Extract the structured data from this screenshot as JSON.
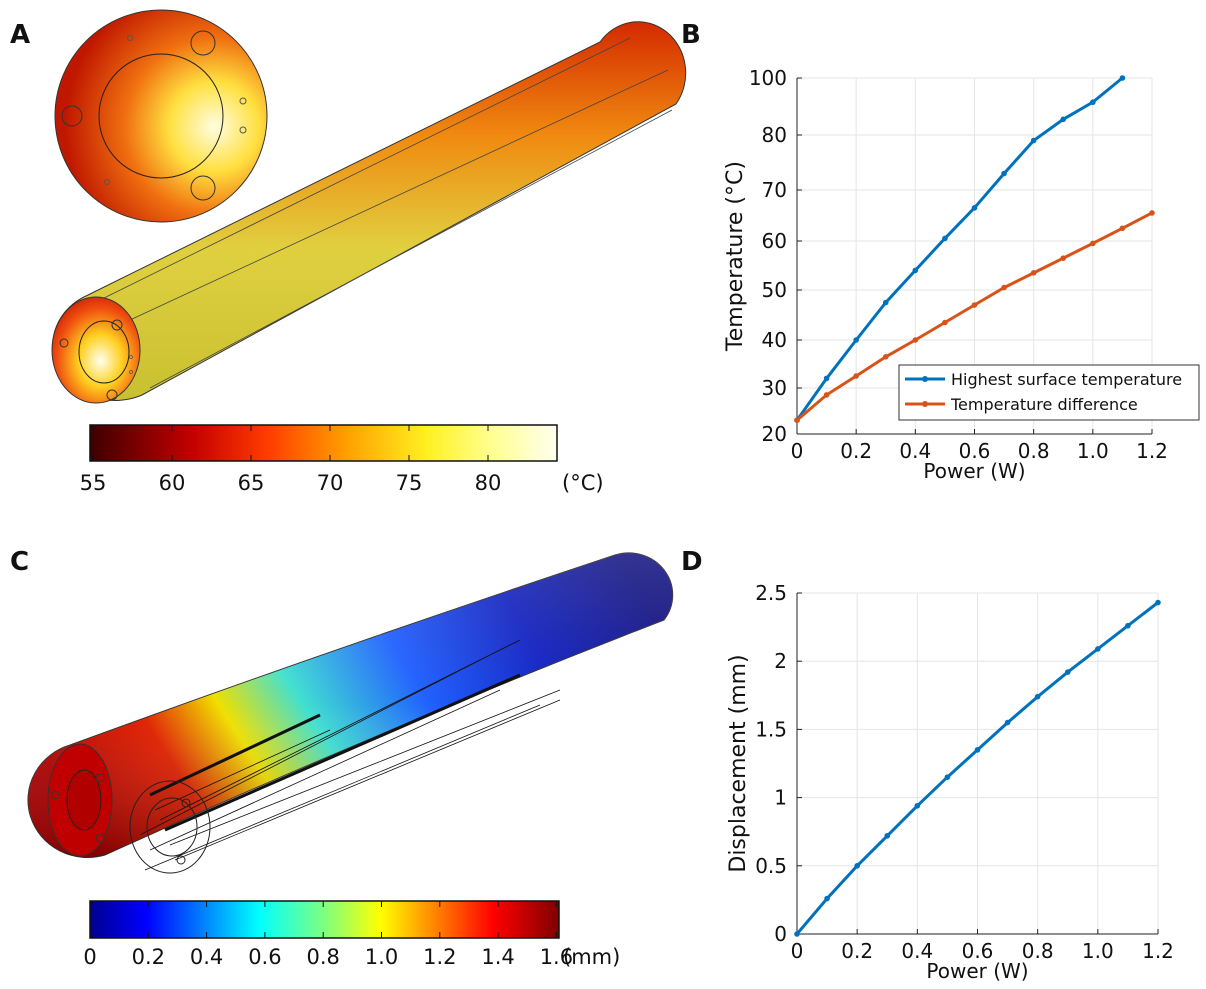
{
  "panels": {
    "a": {
      "letter": "A"
    },
    "b": {
      "letter": "B"
    },
    "c": {
      "letter": "C"
    },
    "d": {
      "letter": "D"
    }
  },
  "colors": {
    "blue": "#0072BD",
    "orange": "#D95319",
    "grid": "#e6e6e6"
  },
  "colorbar_a": {
    "ticks": [
      "55",
      "60",
      "65",
      "70",
      "75",
      "80"
    ],
    "unit": "(°C)",
    "colormap": "hot"
  },
  "colorbar_c": {
    "ticks": [
      "0",
      "0.2",
      "0.4",
      "0.6",
      "0.8",
      "1.0",
      "1.2",
      "1.4",
      "1.6"
    ],
    "unit": "(mm)",
    "colormap": "jet"
  },
  "chart_data": [
    {
      "panel": "B",
      "type": "line",
      "xlabel": "Power (W)",
      "ylabel": "Temperature (°C)",
      "xlim": [
        0,
        1.2
      ],
      "ylim": [
        20,
        100
      ],
      "xticks": [
        "0",
        "0.2",
        "0.4",
        "0.6",
        "0.8",
        "1.0",
        "1.2"
      ],
      "yticks": [
        "20",
        "30",
        "40",
        "50",
        "60",
        "70",
        "80",
        "100"
      ],
      "grid": true,
      "legend_position": "bottom-right",
      "series": [
        {
          "name": "Highest surface temperature",
          "color": "#0072BD",
          "x": [
            0,
            0.1,
            0.2,
            0.3,
            0.4,
            0.5,
            0.6,
            0.7,
            0.8,
            0.9,
            1.0,
            1.1
          ],
          "y": [
            23,
            32,
            40,
            47.5,
            54,
            60.5,
            66.5,
            73,
            79,
            85.5,
            91.5,
            100
          ]
        },
        {
          "name": "Temperature difference",
          "color": "#D95319",
          "x": [
            0,
            0.1,
            0.2,
            0.3,
            0.4,
            0.5,
            0.6,
            0.7,
            0.8,
            0.9,
            1.0,
            1.1,
            1.2
          ],
          "y": [
            23,
            28.5,
            32.5,
            36.5,
            40,
            43.5,
            47,
            50.5,
            53.5,
            56.5,
            59.5,
            62.5,
            65.5
          ]
        }
      ]
    },
    {
      "panel": "D",
      "type": "line",
      "xlabel": "Power (W)",
      "ylabel": "Displacement (mm)",
      "xlim": [
        0,
        1.2
      ],
      "ylim": [
        0,
        2.5
      ],
      "xticks": [
        "0",
        "0.2",
        "0.4",
        "0.6",
        "0.8",
        "1.0",
        "1.2"
      ],
      "yticks": [
        "0",
        "0.5",
        "1",
        "1.5",
        "2",
        "2.5"
      ],
      "grid": true,
      "series": [
        {
          "name": "",
          "color": "#0072BD",
          "x": [
            0,
            0.1,
            0.2,
            0.3,
            0.4,
            0.5,
            0.6,
            0.7,
            0.8,
            0.9,
            1.0,
            1.1,
            1.2
          ],
          "y": [
            0,
            0.26,
            0.5,
            0.72,
            0.94,
            1.15,
            1.35,
            1.55,
            1.74,
            1.92,
            2.09,
            2.26,
            2.43
          ]
        }
      ]
    }
  ]
}
